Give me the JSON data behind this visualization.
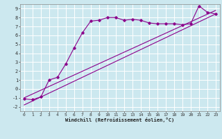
{
  "xlabel": "Windchill (Refroidissement éolien,°C)",
  "background_color": "#cce8ef",
  "grid_color": "#ffffff",
  "line_color": "#8b008b",
  "xlim": [
    -0.5,
    23.5
  ],
  "ylim": [
    -2.5,
    9.5
  ],
  "xticks": [
    0,
    1,
    2,
    3,
    4,
    5,
    6,
    7,
    8,
    9,
    10,
    11,
    12,
    13,
    14,
    15,
    16,
    17,
    18,
    19,
    20,
    21,
    22,
    23
  ],
  "yticks": [
    -2,
    -1,
    0,
    1,
    2,
    3,
    4,
    5,
    6,
    7,
    8,
    9
  ],
  "series1_x": [
    0,
    1,
    2,
    3,
    4,
    5,
    6,
    7,
    8,
    9,
    10,
    11,
    12,
    13,
    14,
    15,
    16,
    17,
    18,
    19,
    20,
    21,
    22,
    23
  ],
  "series1_y": [
    -1.1,
    -1.2,
    -0.9,
    1.0,
    1.3,
    2.8,
    4.6,
    6.3,
    7.6,
    7.7,
    8.0,
    8.0,
    7.7,
    7.8,
    7.7,
    7.4,
    7.3,
    7.3,
    7.3,
    7.2,
    7.3,
    9.3,
    8.6,
    8.4
  ],
  "line1_x": [
    0,
    23
  ],
  "line1_y": [
    -1.8,
    8.4
  ],
  "line2_x": [
    0,
    23
  ],
  "line2_y": [
    -1.0,
    8.8
  ]
}
